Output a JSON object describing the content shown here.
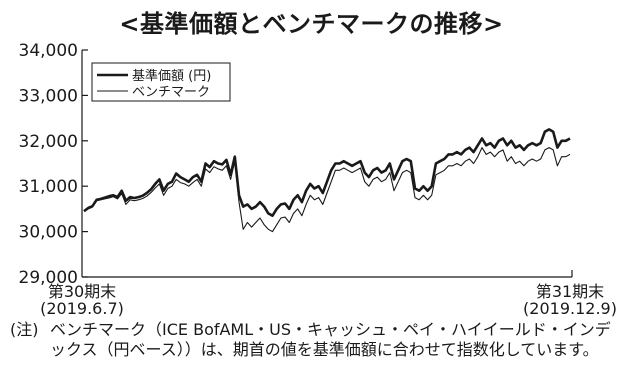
{
  "chart_data": {
    "type": "line",
    "title": "<基準価額とベンチマークの推移>",
    "ylim": [
      29000,
      34000
    ],
    "yticks": [
      "34,000",
      "33,000",
      "32,000",
      "31,000",
      "30,000",
      "29,000"
    ],
    "ytick_values": [
      34000,
      33000,
      32000,
      31000,
      30000,
      29000
    ],
    "x_start_label": [
      "第30期末",
      "(2019.6.7)"
    ],
    "x_end_label": [
      "第31期末",
      "(2019.12.9)"
    ],
    "grid": false,
    "legend_position": "top-left",
    "series": [
      {
        "name": "基準価額 (円)",
        "style": "thick",
        "values": [
          30450,
          30520,
          30560,
          30700,
          30720,
          30750,
          30780,
          30800,
          30760,
          30900,
          30680,
          30760,
          30740,
          30760,
          30790,
          30850,
          30930,
          31050,
          31150,
          30900,
          31050,
          31100,
          31280,
          31200,
          31150,
          31100,
          31200,
          31250,
          31100,
          31500,
          31420,
          31550,
          31500,
          31480,
          31580,
          31250,
          31650,
          30800,
          30550,
          30600,
          30500,
          30550,
          30650,
          30550,
          30400,
          30350,
          30500,
          30600,
          30620,
          30500,
          30700,
          30800,
          30650,
          30900,
          31050,
          30950,
          31000,
          30850,
          31100,
          31350,
          31500,
          31500,
          31550,
          31500,
          31450,
          31500,
          31550,
          31300,
          31200,
          31350,
          31400,
          31300,
          31350,
          31500,
          31150,
          31350,
          31550,
          31600,
          31550,
          30950,
          30900,
          31000,
          30900,
          31000,
          31500,
          31550,
          31600,
          31700,
          31700,
          31750,
          31700,
          31800,
          31850,
          31750,
          31900,
          32050,
          31900,
          31950,
          31850,
          32000,
          32050,
          31900,
          32000,
          31850,
          31900,
          31800,
          31900,
          31950,
          31900,
          31950,
          32200,
          32250,
          32200,
          31850,
          32000,
          32000,
          32050
        ]
      },
      {
        "name": "ベンチマーク",
        "style": "thin",
        "values": [
          30450,
          30500,
          30540,
          30680,
          30700,
          30720,
          30740,
          30770,
          30720,
          30840,
          30600,
          30700,
          30680,
          30700,
          30730,
          30780,
          30860,
          30960,
          31050,
          30800,
          30950,
          31000,
          31150,
          31080,
          31050,
          31000,
          31080,
          31150,
          31000,
          31380,
          31300,
          31430,
          31380,
          31350,
          31450,
          31150,
          31550,
          30650,
          30050,
          30200,
          30100,
          30200,
          30300,
          30150,
          30050,
          30000,
          30150,
          30300,
          30320,
          30200,
          30400,
          30500,
          30350,
          30600,
          30800,
          30700,
          30750,
          30600,
          30850,
          31100,
          31350,
          31350,
          31400,
          31350,
          31300,
          31350,
          31400,
          31100,
          31000,
          31150,
          31200,
          31100,
          31150,
          31300,
          30900,
          31100,
          31300,
          31350,
          31300,
          30750,
          30700,
          30800,
          30700,
          30800,
          31250,
          31300,
          31350,
          31450,
          31450,
          31500,
          31450,
          31550,
          31600,
          31500,
          31650,
          31850,
          31700,
          31750,
          31650,
          31750,
          31800,
          31550,
          31650,
          31500,
          31550,
          31450,
          31550,
          31600,
          31550,
          31600,
          31800,
          31850,
          31800,
          31450,
          31650,
          31650,
          31700
        ]
      }
    ]
  },
  "note": {
    "prefix": "(注)",
    "text": "ベンチマーク（ICE BofAML・US・キャッシュ・ペイ・ハイイールド・インデックス（円ベース））は、期首の値を基準価額に合わせて指数化しています。"
  }
}
